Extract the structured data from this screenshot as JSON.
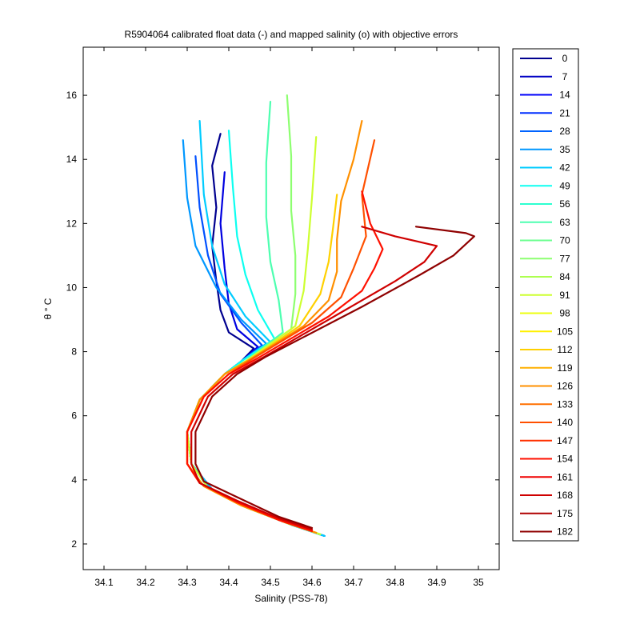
{
  "chart_data": {
    "type": "line",
    "title": "R5904064 calibrated float data (-) and mapped salinity (o) with objective errors",
    "xlabel": "Salinity (PSS-78)",
    "ylabel": "θ ° C",
    "xlim": [
      34.05,
      35.05
    ],
    "ylim": [
      1.2,
      17.5
    ],
    "xticks": [
      "34.1",
      "34.2",
      "34.3",
      "34.4",
      "34.5",
      "34.6",
      "34.7",
      "34.8",
      "34.9",
      "35"
    ],
    "yticks": [
      "2",
      "4",
      "6",
      "8",
      "10",
      "12",
      "14",
      "16"
    ],
    "grid": false,
    "legend_position": "outside-right",
    "colormap": "jet",
    "legend": [
      "0",
      "7",
      "14",
      "21",
      "28",
      "35",
      "42",
      "49",
      "56",
      "63",
      "70",
      "77",
      "84",
      "91",
      "98",
      "105",
      "112",
      "119",
      "126",
      "133",
      "140",
      "147",
      "154",
      "161",
      "168",
      "175",
      "182"
    ],
    "legend_colors": [
      "#00008f",
      "#0000c4",
      "#0000fa",
      "#002fff",
      "#0063ff",
      "#0097ff",
      "#00ccff",
      "#0dfff0",
      "#2dffd0",
      "#4dffb0",
      "#6dff90",
      "#8dff70",
      "#adff50",
      "#cdff30",
      "#edff10",
      "#fff000",
      "#ffd000",
      "#ffb000",
      "#ff9000",
      "#ff7000",
      "#ff5000",
      "#ff3000",
      "#ff1000",
      "#ef0000",
      "#cf0000",
      "#af0000",
      "#8f0000"
    ],
    "series": [
      {
        "color": "#00008f",
        "x": [
          34.63,
          34.55,
          34.45,
          34.36,
          34.31,
          34.3,
          34.33,
          34.39,
          34.43,
          34.46,
          34.4,
          34.38,
          34.37,
          34.36,
          34.37,
          34.36,
          34.38
        ],
        "y": [
          2.25,
          2.6,
          3.1,
          3.7,
          4.5,
          5.5,
          6.5,
          7.3,
          7.7,
          8.1,
          8.6,
          9.3,
          10.2,
          11.3,
          12.5,
          13.8,
          14.8
        ]
      },
      {
        "color": "#0000e0",
        "x": [
          34.63,
          34.55,
          34.45,
          34.36,
          34.31,
          34.3,
          34.33,
          34.39,
          34.43,
          34.47,
          34.42,
          34.4,
          34.39,
          34.38,
          34.39
        ],
        "y": [
          2.25,
          2.6,
          3.1,
          3.7,
          4.5,
          5.5,
          6.5,
          7.3,
          7.7,
          8.15,
          8.7,
          9.5,
          10.6,
          12.0,
          13.6
        ]
      },
      {
        "color": "#0050ff",
        "x": [
          34.63,
          34.55,
          34.45,
          34.36,
          34.31,
          34.3,
          34.33,
          34.39,
          34.43,
          34.48,
          34.43,
          34.38,
          34.35,
          34.33,
          34.32
        ],
        "y": [
          2.25,
          2.6,
          3.1,
          3.7,
          4.5,
          5.5,
          6.5,
          7.3,
          7.7,
          8.2,
          8.9,
          9.8,
          11.0,
          12.5,
          14.1
        ]
      },
      {
        "color": "#0097ff",
        "x": [
          34.63,
          34.55,
          34.45,
          34.36,
          34.31,
          34.3,
          34.33,
          34.39,
          34.43,
          34.49,
          34.43,
          34.37,
          34.32,
          34.3,
          34.29
        ],
        "y": [
          2.25,
          2.6,
          3.1,
          3.7,
          4.5,
          5.5,
          6.5,
          7.3,
          7.7,
          8.25,
          9.0,
          10.0,
          11.3,
          12.8,
          14.6
        ]
      },
      {
        "color": "#00ccff",
        "x": [
          34.63,
          34.55,
          34.45,
          34.36,
          34.31,
          34.3,
          34.33,
          34.39,
          34.43,
          34.5,
          34.44,
          34.39,
          34.36,
          34.34,
          34.33
        ],
        "y": [
          2.25,
          2.6,
          3.1,
          3.7,
          4.5,
          5.5,
          6.5,
          7.3,
          7.7,
          8.3,
          9.1,
          10.1,
          11.3,
          12.9,
          15.2
        ]
      },
      {
        "color": "#0dfff0",
        "x": [
          34.62,
          34.54,
          34.44,
          34.35,
          34.31,
          34.3,
          34.33,
          34.39,
          34.43,
          34.51,
          34.47,
          34.44,
          34.42,
          34.41,
          34.4
        ],
        "y": [
          2.3,
          2.65,
          3.15,
          3.75,
          4.5,
          5.5,
          6.5,
          7.3,
          7.7,
          8.4,
          9.3,
          10.4,
          11.6,
          13.1,
          14.9
        ]
      },
      {
        "color": "#4dffb0",
        "x": [
          34.62,
          34.54,
          34.44,
          34.35,
          34.31,
          34.3,
          34.33,
          34.39,
          34.44,
          34.53,
          34.52,
          34.5,
          34.49,
          34.49,
          34.5
        ],
        "y": [
          2.3,
          2.65,
          3.15,
          3.75,
          4.5,
          5.5,
          6.5,
          7.3,
          7.7,
          8.6,
          9.6,
          10.8,
          12.2,
          13.9,
          15.8
        ]
      },
      {
        "color": "#8dff70",
        "x": [
          34.62,
          34.54,
          34.44,
          34.35,
          34.31,
          34.3,
          34.33,
          34.39,
          34.44,
          34.55,
          34.56,
          34.56,
          34.55,
          34.55,
          34.54
        ],
        "y": [
          2.3,
          2.65,
          3.15,
          3.75,
          4.5,
          5.5,
          6.5,
          7.3,
          7.7,
          8.7,
          9.8,
          11.0,
          12.4,
          14.1,
          16.0
        ]
      },
      {
        "color": "#cdff30",
        "x": [
          34.62,
          34.54,
          34.44,
          34.35,
          34.31,
          34.3,
          34.33,
          34.39,
          34.44,
          34.56,
          34.58,
          34.59,
          34.6,
          34.61
        ],
        "y": [
          2.3,
          2.65,
          3.15,
          3.75,
          4.5,
          5.5,
          6.5,
          7.3,
          7.7,
          8.8,
          9.9,
          11.2,
          12.8,
          14.7
        ]
      },
      {
        "color": "#ffd000",
        "x": [
          34.61,
          34.53,
          34.43,
          34.34,
          34.3,
          34.3,
          34.33,
          34.39,
          34.45,
          34.57,
          34.62,
          34.64,
          34.65,
          34.66
        ],
        "y": [
          2.35,
          2.7,
          3.2,
          3.8,
          4.5,
          5.5,
          6.5,
          7.3,
          7.75,
          8.8,
          9.8,
          10.8,
          11.8,
          12.9
        ]
      },
      {
        "color": "#ff9000",
        "x": [
          34.61,
          34.53,
          34.43,
          34.34,
          34.3,
          34.3,
          34.33,
          34.39,
          34.45,
          34.58,
          34.64,
          34.66,
          34.66,
          34.67,
          34.7,
          34.72
        ],
        "y": [
          2.35,
          2.7,
          3.2,
          3.8,
          4.5,
          5.5,
          6.5,
          7.3,
          7.75,
          8.8,
          9.6,
          10.5,
          11.5,
          12.7,
          14.0,
          15.2
        ]
      },
      {
        "color": "#ff5000",
        "x": [
          34.6,
          34.52,
          34.42,
          34.33,
          34.3,
          34.3,
          34.34,
          34.4,
          34.46,
          34.6,
          34.67,
          34.7,
          34.73,
          34.72,
          34.75
        ],
        "y": [
          2.4,
          2.75,
          3.3,
          3.9,
          4.5,
          5.5,
          6.6,
          7.3,
          7.8,
          8.9,
          9.7,
          10.6,
          11.6,
          12.9,
          14.6
        ]
      },
      {
        "color": "#ff1000",
        "x": [
          34.6,
          34.52,
          34.42,
          34.33,
          34.3,
          34.3,
          34.34,
          34.4,
          34.47,
          34.64,
          34.72,
          34.75,
          34.77,
          34.74,
          34.72
        ],
        "y": [
          2.4,
          2.75,
          3.3,
          3.9,
          4.5,
          5.5,
          6.6,
          7.3,
          7.8,
          9.1,
          9.9,
          10.6,
          11.2,
          12.0,
          13.0
        ]
      },
      {
        "color": "#cf0000",
        "x": [
          34.6,
          34.52,
          34.42,
          34.33,
          34.31,
          34.31,
          34.35,
          34.41,
          34.48,
          34.68,
          34.8,
          34.87,
          34.9,
          34.8,
          34.72
        ],
        "y": [
          2.45,
          2.8,
          3.35,
          3.9,
          4.5,
          5.5,
          6.6,
          7.3,
          7.8,
          9.3,
          10.2,
          10.8,
          11.3,
          11.6,
          11.9
        ]
      },
      {
        "color": "#8f0000",
        "x": [
          34.6,
          34.52,
          34.43,
          34.34,
          34.32,
          34.32,
          34.36,
          34.42,
          34.49,
          34.72,
          34.86,
          34.94,
          34.99,
          34.97,
          34.85
        ],
        "y": [
          2.5,
          2.85,
          3.4,
          3.95,
          4.5,
          5.5,
          6.6,
          7.3,
          7.85,
          9.4,
          10.4,
          11.0,
          11.6,
          11.7,
          11.9
        ]
      }
    ]
  }
}
